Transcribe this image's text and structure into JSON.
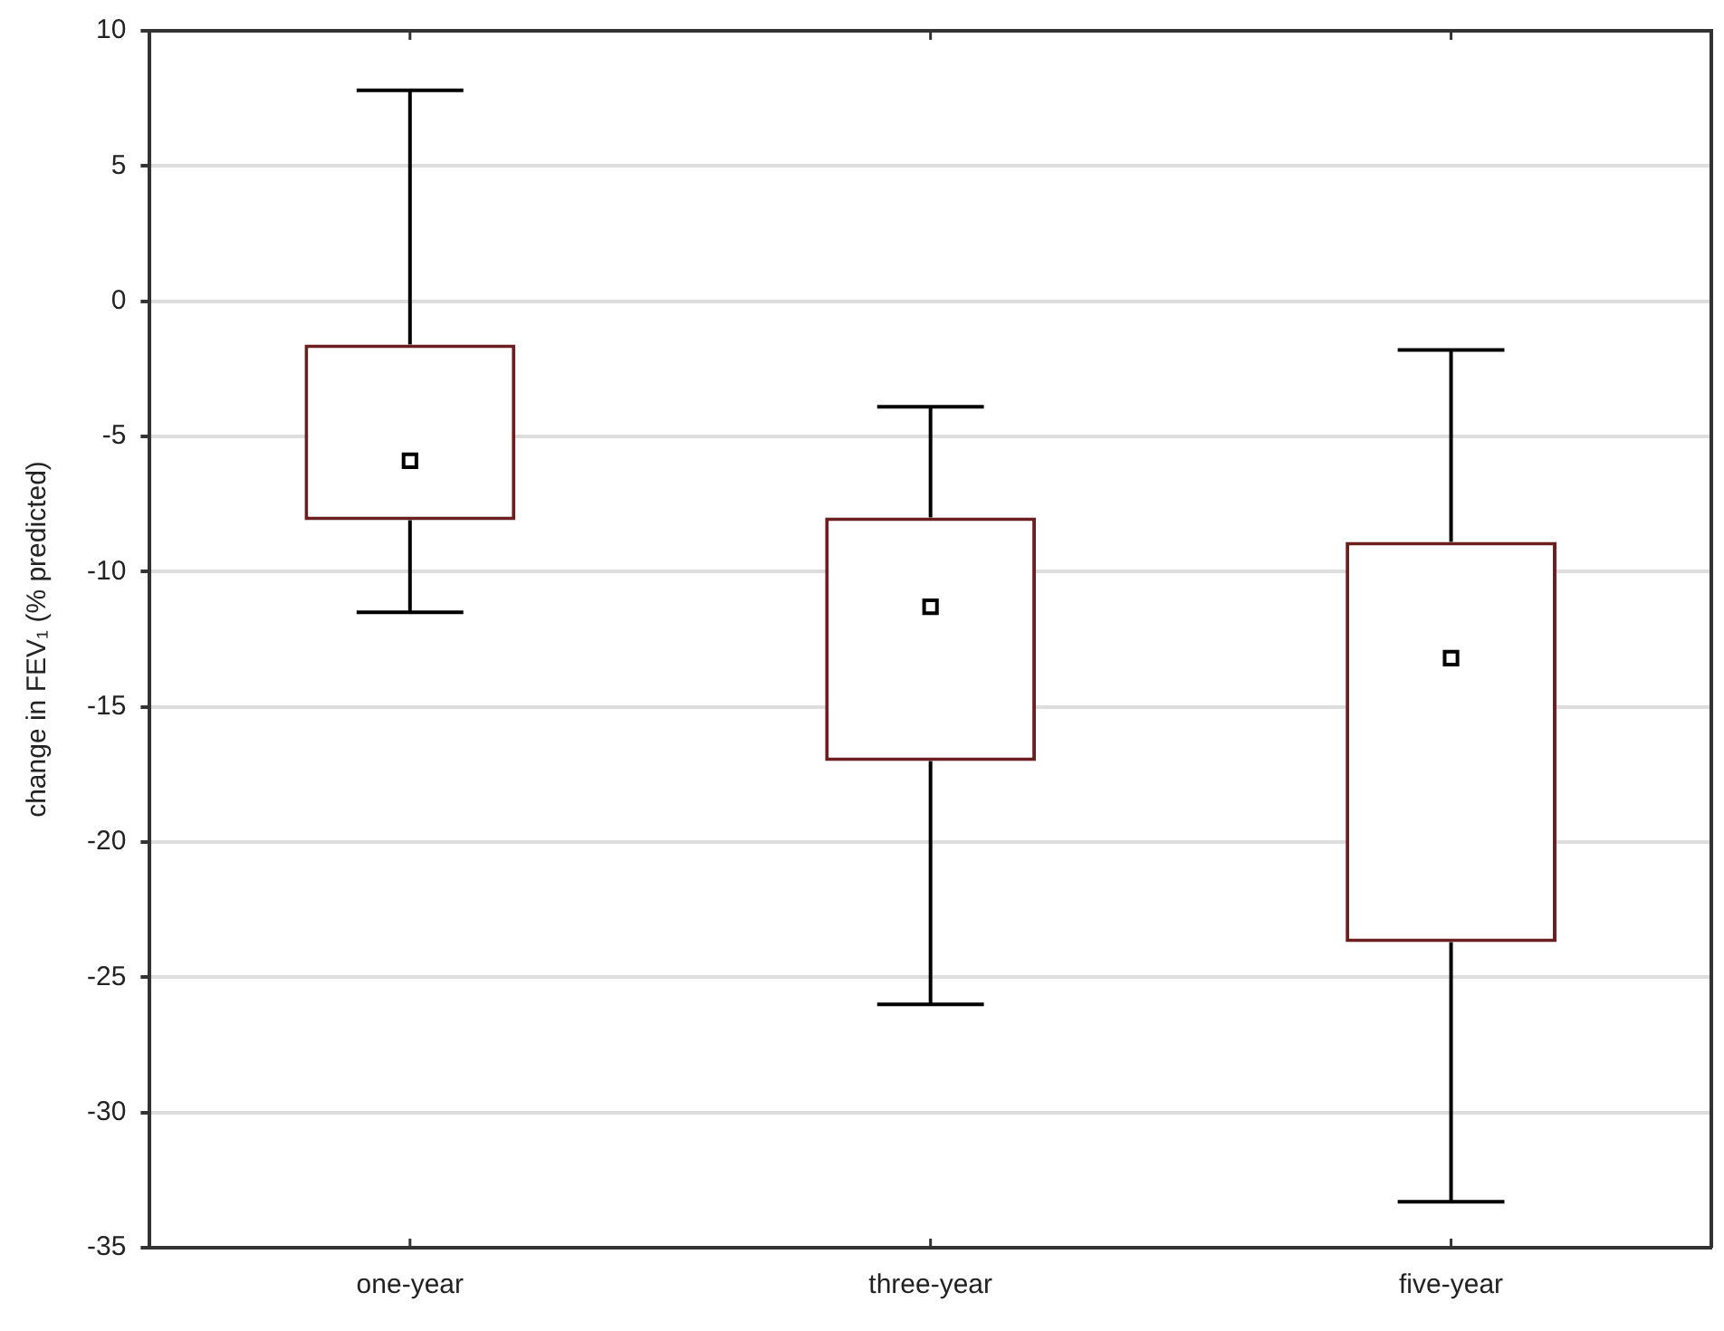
{
  "chart_data": {
    "type": "box",
    "ylabel": "change in FEV₁ (% predicted)",
    "categories": [
      "one-year",
      "three-year",
      "five-year"
    ],
    "boxes": [
      {
        "low": -11.5,
        "q1": -8.1,
        "median": -5.9,
        "q3": -1.6,
        "high": 7.8
      },
      {
        "low": -26.0,
        "q1": -17.0,
        "median": -11.3,
        "q3": -8.0,
        "high": -3.9
      },
      {
        "low": -33.3,
        "q1": -23.7,
        "median": -13.2,
        "q3": -8.9,
        "high": -1.8
      }
    ],
    "color": "#6b1f1f",
    "marker": "square",
    "ylim": [
      -35,
      10
    ],
    "yticks": [
      -35,
      -30,
      -25,
      -20,
      -15,
      -10,
      -5,
      0,
      5,
      10
    ],
    "grid": "y"
  }
}
